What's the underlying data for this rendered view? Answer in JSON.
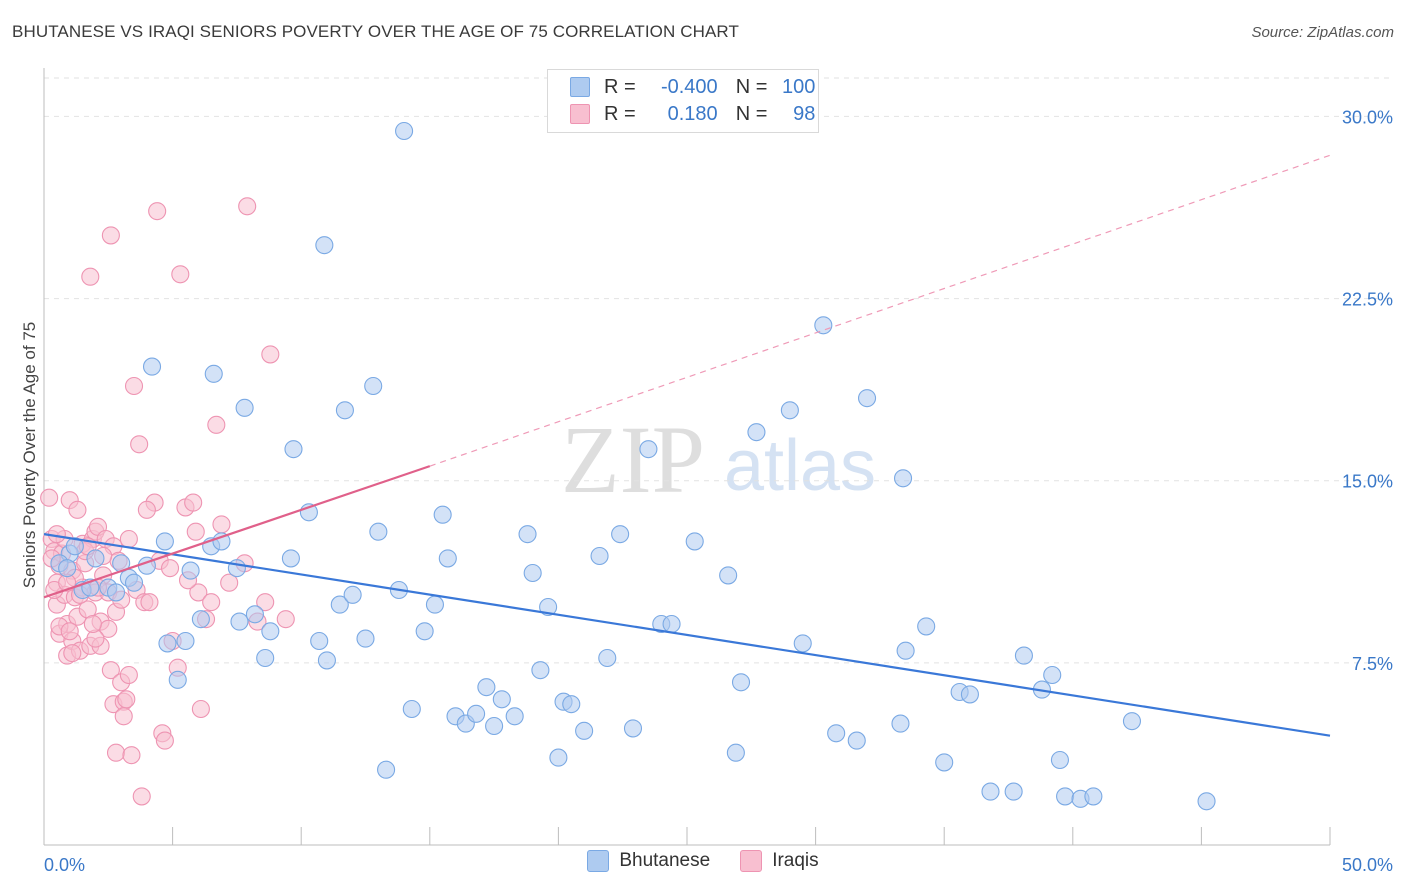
{
  "header": {
    "title": "BHUTANESE VS IRAQI SENIORS POVERTY OVER THE AGE OF 75 CORRELATION CHART",
    "source": "Source: ZipAtlas.com"
  },
  "legend_top": {
    "rows": [
      {
        "r_label": "R =",
        "r_value": "-0.400",
        "n_label": "N =",
        "n_value": "100",
        "color": "#aecbf0"
      },
      {
        "r_label": "R =",
        "r_value": "0.180",
        "n_label": "N =",
        "n_value": "98",
        "color": "#f8bfd0"
      }
    ]
  },
  "legend_bottom": [
    {
      "label": "Bhutanese",
      "color": "#aecbf0"
    },
    {
      "label": "Iraqis",
      "color": "#f8bfd0"
    }
  ],
  "watermark": {
    "zip": "ZIP",
    "atlas": "atlas"
  },
  "chart_data": {
    "type": "scatter",
    "ylabel": "Seniors Poverty Over the Age of 75",
    "xlim": [
      0,
      50
    ],
    "ylim": [
      0,
      31.5
    ],
    "x_tick_labels": [
      "0.0%",
      "50.0%"
    ],
    "y_ticks": [
      7.5,
      15.0,
      22.5,
      30.0
    ],
    "y_tick_labels": [
      "7.5%",
      "15.0%",
      "22.5%",
      "30.0%"
    ],
    "grid": "horizontal dashed",
    "colors": {
      "bhutanese": "#3a78d8",
      "iraqis": "#e0608a",
      "tick_label": "#3a78c8"
    },
    "series": [
      {
        "name": "Bhutanese",
        "color": "#aecbf0",
        "stroke": "#7aa9e4",
        "trend": {
          "x": [
            0,
            50
          ],
          "y": [
            12.8,
            4.5
          ],
          "style": "solid",
          "color": "#3a78d8"
        },
        "points": [
          [
            1.0,
            12.0
          ],
          [
            2.0,
            11.8
          ],
          [
            1.5,
            10.5
          ],
          [
            2.5,
            10.6
          ],
          [
            3.3,
            11.0
          ],
          [
            3.0,
            11.6
          ],
          [
            4.2,
            19.7
          ],
          [
            4.7,
            12.5
          ],
          [
            4.8,
            8.3
          ],
          [
            5.2,
            6.8
          ],
          [
            5.5,
            8.4
          ],
          [
            5.7,
            11.3
          ],
          [
            6.1,
            9.3
          ],
          [
            6.5,
            12.3
          ],
          [
            6.6,
            19.4
          ],
          [
            6.9,
            12.5
          ],
          [
            7.5,
            11.4
          ],
          [
            7.6,
            9.2
          ],
          [
            7.8,
            18.0
          ],
          [
            8.2,
            9.5
          ],
          [
            8.6,
            7.7
          ],
          [
            8.8,
            8.8
          ],
          [
            9.6,
            11.8
          ],
          [
            9.7,
            16.3
          ],
          [
            10.3,
            13.7
          ],
          [
            10.9,
            24.7
          ],
          [
            10.7,
            8.4
          ],
          [
            11.0,
            7.6
          ],
          [
            11.5,
            9.9
          ],
          [
            11.7,
            17.9
          ],
          [
            12.0,
            10.3
          ],
          [
            12.5,
            8.5
          ],
          [
            12.8,
            18.9
          ],
          [
            13.0,
            12.9
          ],
          [
            13.3,
            3.1
          ],
          [
            13.8,
            10.5
          ],
          [
            14.0,
            29.4
          ],
          [
            14.3,
            5.6
          ],
          [
            14.8,
            8.8
          ],
          [
            15.2,
            9.9
          ],
          [
            15.5,
            13.6
          ],
          [
            15.7,
            11.8
          ],
          [
            16.0,
            5.3
          ],
          [
            16.4,
            5.0
          ],
          [
            16.8,
            5.4
          ],
          [
            17.2,
            6.5
          ],
          [
            17.5,
            4.9
          ],
          [
            17.8,
            6.0
          ],
          [
            18.3,
            5.3
          ],
          [
            18.8,
            12.8
          ],
          [
            19.0,
            11.2
          ],
          [
            19.3,
            7.2
          ],
          [
            19.6,
            9.8
          ],
          [
            20.0,
            3.6
          ],
          [
            20.2,
            5.9
          ],
          [
            20.5,
            5.8
          ],
          [
            21.0,
            4.7
          ],
          [
            21.6,
            11.9
          ],
          [
            21.9,
            7.7
          ],
          [
            22.4,
            12.8
          ],
          [
            22.9,
            4.8
          ],
          [
            23.5,
            16.3
          ],
          [
            24.0,
            9.1
          ],
          [
            24.4,
            9.1
          ],
          [
            25.3,
            12.5
          ],
          [
            26.6,
            11.1
          ],
          [
            26.9,
            3.8
          ],
          [
            27.1,
            6.7
          ],
          [
            27.7,
            17.0
          ],
          [
            29.0,
            17.9
          ],
          [
            29.5,
            8.3
          ],
          [
            30.3,
            21.4
          ],
          [
            30.8,
            4.6
          ],
          [
            31.6,
            4.3
          ],
          [
            32.0,
            18.4
          ],
          [
            33.3,
            5.0
          ],
          [
            33.4,
            15.1
          ],
          [
            33.5,
            8.0
          ],
          [
            34.3,
            9.0
          ],
          [
            35.0,
            3.4
          ],
          [
            35.6,
            6.3
          ],
          [
            36.0,
            6.2
          ],
          [
            36.8,
            2.2
          ],
          [
            37.7,
            2.2
          ],
          [
            38.1,
            7.8
          ],
          [
            38.8,
            6.4
          ],
          [
            39.2,
            7.0
          ],
          [
            39.5,
            3.5
          ],
          [
            39.7,
            2.0
          ],
          [
            40.3,
            1.9
          ],
          [
            40.8,
            2.0
          ],
          [
            42.3,
            5.1
          ],
          [
            45.2,
            1.8
          ],
          [
            1.2,
            12.3
          ],
          [
            0.6,
            11.6
          ],
          [
            2.8,
            10.4
          ],
          [
            0.9,
            11.4
          ],
          [
            1.8,
            10.6
          ],
          [
            3.5,
            10.8
          ],
          [
            4.0,
            11.5
          ]
        ]
      },
      {
        "name": "Iraqis",
        "color": "#f8bfd0",
        "stroke": "#ee94b2",
        "trend": {
          "x": [
            0,
            15
          ],
          "y": [
            10.2,
            15.6
          ],
          "style": "solid",
          "extend_to": [
            50,
            28.4
          ],
          "extend_style": "dashed",
          "color": "#e0608a"
        },
        "points": [
          [
            0.2,
            14.3
          ],
          [
            0.3,
            12.6
          ],
          [
            0.4,
            12.1
          ],
          [
            0.5,
            10.8
          ],
          [
            0.5,
            9.9
          ],
          [
            0.6,
            8.7
          ],
          [
            0.6,
            11.5
          ],
          [
            0.7,
            12.0
          ],
          [
            0.8,
            10.3
          ],
          [
            0.9,
            9.1
          ],
          [
            0.9,
            7.8
          ],
          [
            1.0,
            14.2
          ],
          [
            1.1,
            11.3
          ],
          [
            1.1,
            8.4
          ],
          [
            1.2,
            10.2
          ],
          [
            1.3,
            13.8
          ],
          [
            1.3,
            9.4
          ],
          [
            1.4,
            8.0
          ],
          [
            1.5,
            12.4
          ],
          [
            1.5,
            10.6
          ],
          [
            1.6,
            11.6
          ],
          [
            1.7,
            9.7
          ],
          [
            1.8,
            8.2
          ],
          [
            1.8,
            23.4
          ],
          [
            1.9,
            12.6
          ],
          [
            2.0,
            12.9
          ],
          [
            2.0,
            10.4
          ],
          [
            2.1,
            13.1
          ],
          [
            2.2,
            9.2
          ],
          [
            2.2,
            8.2
          ],
          [
            2.3,
            11.1
          ],
          [
            2.4,
            12.6
          ],
          [
            2.5,
            10.4
          ],
          [
            2.5,
            8.9
          ],
          [
            2.6,
            7.2
          ],
          [
            2.7,
            5.8
          ],
          [
            2.7,
            12.3
          ],
          [
            2.8,
            3.8
          ],
          [
            2.8,
            9.6
          ],
          [
            2.9,
            11.7
          ],
          [
            3.0,
            6.7
          ],
          [
            3.1,
            5.9
          ],
          [
            3.1,
            5.3
          ],
          [
            3.2,
            6.0
          ],
          [
            3.3,
            7.0
          ],
          [
            3.4,
            3.7
          ],
          [
            3.5,
            18.9
          ],
          [
            3.6,
            10.5
          ],
          [
            3.8,
            2.0
          ],
          [
            3.9,
            10.0
          ],
          [
            4.1,
            10.0
          ],
          [
            4.3,
            14.1
          ],
          [
            4.4,
            26.1
          ],
          [
            4.5,
            11.7
          ],
          [
            4.6,
            4.6
          ],
          [
            4.7,
            4.3
          ],
          [
            4.9,
            11.4
          ],
          [
            5.0,
            8.4
          ],
          [
            5.2,
            7.3
          ],
          [
            5.3,
            23.5
          ],
          [
            5.5,
            13.9
          ],
          [
            5.8,
            14.1
          ],
          [
            5.9,
            12.9
          ],
          [
            6.0,
            10.4
          ],
          [
            6.1,
            5.6
          ],
          [
            6.3,
            9.3
          ],
          [
            6.5,
            10.0
          ],
          [
            6.7,
            17.3
          ],
          [
            6.9,
            13.2
          ],
          [
            7.2,
            10.8
          ],
          [
            7.8,
            11.6
          ],
          [
            7.9,
            26.3
          ],
          [
            8.3,
            9.2
          ],
          [
            8.8,
            20.2
          ],
          [
            8.6,
            10.0
          ],
          [
            9.4,
            9.3
          ],
          [
            0.3,
            11.8
          ],
          [
            0.4,
            10.5
          ],
          [
            0.6,
            9.0
          ],
          [
            0.8,
            12.6
          ],
          [
            1.0,
            8.8
          ],
          [
            1.2,
            11.0
          ],
          [
            1.4,
            10.3
          ],
          [
            1.6,
            12.1
          ],
          [
            2.0,
            8.5
          ],
          [
            2.3,
            11.9
          ],
          [
            2.6,
            25.1
          ],
          [
            3.7,
            16.5
          ],
          [
            4.0,
            13.8
          ],
          [
            3.3,
            12.6
          ],
          [
            2.1,
            10.6
          ],
          [
            1.7,
            12.3
          ],
          [
            0.9,
            10.8
          ],
          [
            1.9,
            9.1
          ],
          [
            0.5,
            12.8
          ],
          [
            1.1,
            7.9
          ],
          [
            5.6,
            10.9
          ],
          [
            3.0,
            10.1
          ]
        ]
      }
    ]
  }
}
